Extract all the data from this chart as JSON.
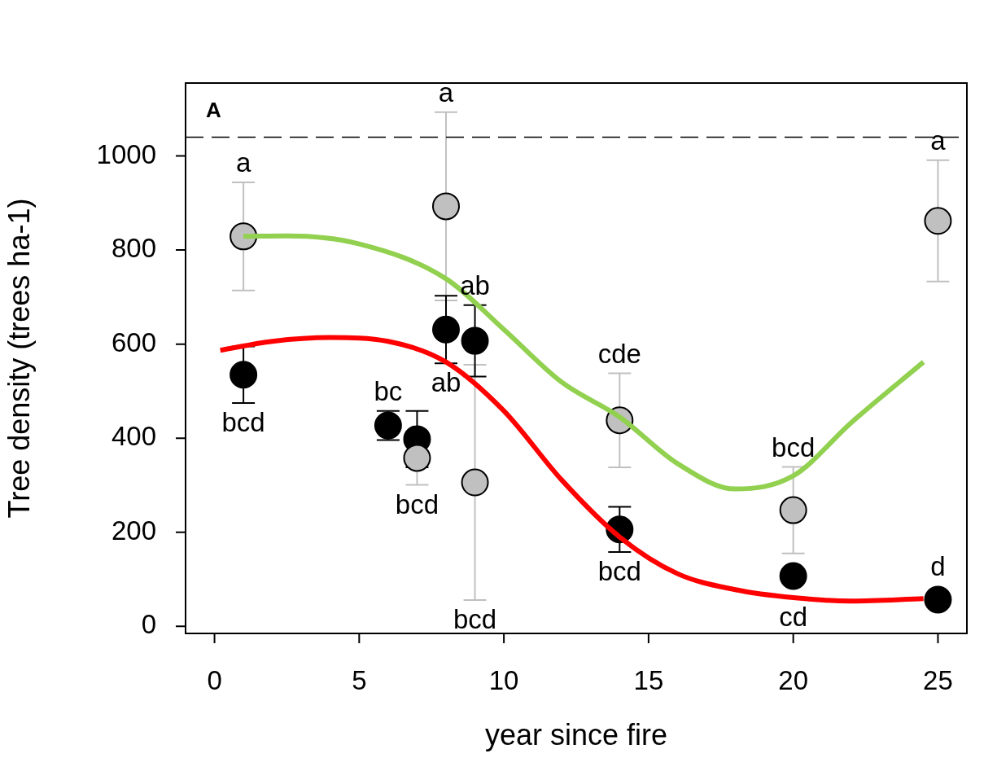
{
  "chart_data": {
    "type": "scatter",
    "xlabel": "year since fire",
    "ylabel": "Tree density (trees ha-1)",
    "xlim": [
      -1,
      26
    ],
    "xticks": [
      0,
      5,
      10,
      15,
      20,
      25
    ],
    "ylim": [
      -15,
      1155
    ],
    "yticks": [
      0,
      200,
      400,
      600,
      800,
      1000
    ],
    "marker": "circle",
    "series": [
      {
        "color": "#c0c0c0",
        "x": [
          1,
          7,
          8,
          9,
          14,
          20,
          25
        ],
        "values": [
          829,
          358,
          893,
          306,
          438,
          247,
          862
        ],
        "errors": [
          115,
          57,
          200,
          250,
          100,
          92,
          129
        ]
      },
      {
        "color": "#000000",
        "x": [
          1,
          6,
          7,
          8,
          9,
          14,
          20,
          25
        ],
        "values": [
          535,
          427,
          398,
          631,
          607,
          206,
          107,
          57
        ],
        "errors": [
          60,
          31,
          60,
          72,
          76,
          48,
          null,
          null
        ]
      },
      {
        "type": "line",
        "color": "#92d050",
        "marker": "none",
        "line_style": "solid",
        "x": [
          1,
          2.5,
          5,
          8,
          10,
          12,
          14,
          16,
          18,
          20,
          22,
          24.5
        ],
        "values": [
          829,
          830,
          813,
          739,
          631,
          519,
          445,
          346,
          292,
          320,
          433,
          562
        ]
      },
      {
        "type": "line",
        "color": "#ff0000",
        "marker": "none",
        "line_style": "solid",
        "x": [
          0.2,
          2,
          4,
          6,
          8,
          10,
          12,
          14,
          16,
          18,
          20,
          22,
          24.5
        ],
        "values": [
          587,
          606,
          614,
          606,
          562,
          458,
          311,
          190,
          112,
          78,
          61,
          54,
          59
        ]
      }
    ],
    "ref_lines": [
      {
        "axis": "y",
        "value": 1040,
        "color": "#000000",
        "line_style": "dashed"
      }
    ],
    "annotations": [
      "A",
      {
        "text": "a",
        "x": 1,
        "y": 944
      },
      {
        "text": "a",
        "x": 8,
        "y": 1093
      },
      {
        "text": "a",
        "x": 25,
        "y": 991
      },
      {
        "text": "ab",
        "x": 9,
        "y": 683
      },
      {
        "text": "bc",
        "x": 6,
        "y": 458
      },
      {
        "text": "ab",
        "x": 8,
        "y": 559
      },
      {
        "text": "bcd",
        "x": 1,
        "y": 475
      },
      {
        "text": "bcd",
        "x": 7,
        "y": 301
      },
      {
        "text": "bcd",
        "x": 9,
        "y": 56
      },
      {
        "text": "cde",
        "x": 14,
        "y": 538
      },
      {
        "text": "bcd",
        "x": 14,
        "y": 158
      },
      {
        "text": "bcd",
        "x": 20,
        "y": 339
      },
      {
        "text": "cd",
        "x": 20,
        "y": 61
      },
      {
        "text": "d",
        "x": 25,
        "y": 57
      }
    ]
  }
}
